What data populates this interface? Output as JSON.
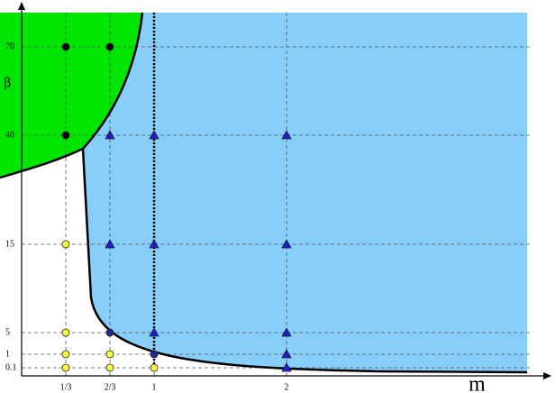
{
  "chart_data": {
    "type": "scatter",
    "x_label": "m",
    "y_label": "β",
    "xlim": [
      0,
      4
    ],
    "xticks": [
      {
        "value": 0.3333,
        "label": "1/3"
      },
      {
        "value": 0.6667,
        "label": "2/3"
      },
      1,
      2
    ],
    "ylim": [
      0,
      80
    ],
    "yticks": [
      0.1,
      1,
      5,
      15,
      40,
      70
    ],
    "grid": true,
    "series": [
      {
        "color": "#000000",
        "marker": "circle",
        "x": [
          0.3333,
          0.6667,
          0.3333
        ],
        "values": [
          70,
          70,
          40
        ]
      },
      {
        "color": "#ffff44",
        "marker": "circle",
        "x": [
          0.3333,
          0.3333,
          0.3333,
          0.3333,
          0.6667,
          0.6667,
          1
        ],
        "values": [
          15,
          5,
          1,
          0.1,
          1,
          0.1,
          0.1
        ]
      },
      {
        "color": "#1c1cd8",
        "marker": "triangle",
        "x": [
          0.6667,
          1,
          2,
          0.6667,
          1,
          2,
          1,
          2,
          2,
          2
        ],
        "values": [
          40,
          40,
          40,
          15,
          15,
          15,
          5,
          5,
          1,
          0.1
        ]
      },
      {
        "color": "#1e2a90",
        "marker": "circle",
        "x": [
          0.6667,
          1
        ],
        "values": [
          5,
          1
        ]
      }
    ]
  }
}
